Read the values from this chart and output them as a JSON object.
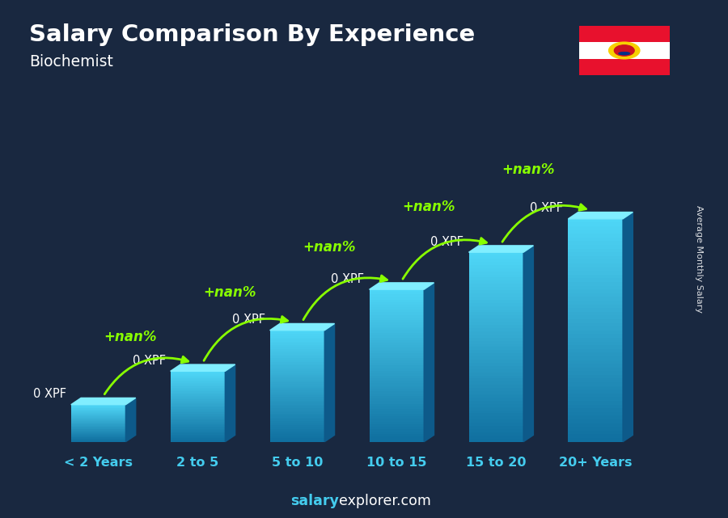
{
  "title": "Salary Comparison By Experience",
  "subtitle": "Biochemist",
  "categories": [
    "< 2 Years",
    "2 to 5",
    "5 to 10",
    "10 to 15",
    "15 to 20",
    "20+ Years"
  ],
  "bar_labels": [
    "0 XPF",
    "0 XPF",
    "0 XPF",
    "0 XPF",
    "0 XPF",
    "0 XPF"
  ],
  "increase_labels": [
    "+nan%",
    "+nan%",
    "+nan%",
    "+nan%",
    "+nan%"
  ],
  "bar_color_light": "#4dd8f0",
  "bar_color_dark": "#1488bb",
  "bar_color_side": "#0d5a8a",
  "bar_color_top": "#80eeff",
  "background_color": "#192840",
  "title_color": "#ffffff",
  "subtitle_color": "#ffffff",
  "label_color": "#ffffff",
  "increase_color": "#88ff00",
  "xtick_color": "#44ccee",
  "ylabel": "Average Monthly Salary",
  "footer_bold": "salary",
  "footer_rest": "explorer.com",
  "bar_heights": [
    1.0,
    1.9,
    3.0,
    4.1,
    5.1,
    6.0
  ]
}
